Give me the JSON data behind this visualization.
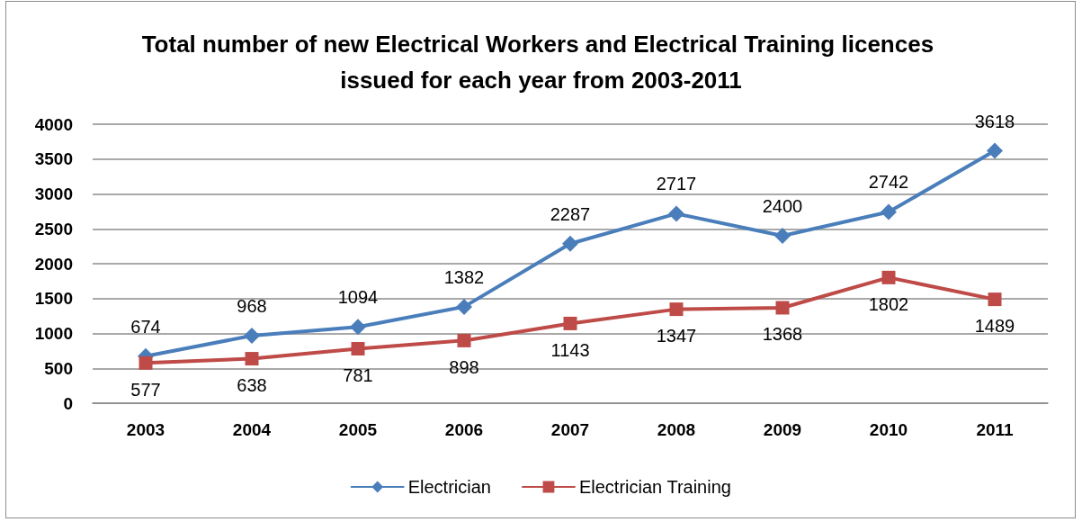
{
  "chart_data": {
    "type": "line",
    "title": "Total number of new Electrical Workers and Electrical Training licences issued for each year from 2003-2011",
    "categories": [
      "2003",
      "2004",
      "2005",
      "2006",
      "2007",
      "2008",
      "2009",
      "2010",
      "2011"
    ],
    "series": [
      {
        "name": "Electrician",
        "color": "#4a7ebb",
        "marker": "diamond",
        "values": [
          674,
          968,
          1094,
          1382,
          2287,
          2717,
          2400,
          2742,
          3618
        ]
      },
      {
        "name": "Electrician Training",
        "color": "#be4b48",
        "marker": "square",
        "values": [
          577,
          638,
          781,
          898,
          1143,
          1347,
          1368,
          1802,
          1489
        ]
      }
    ],
    "ylim": [
      0,
      4000
    ],
    "yticks": [
      0,
      500,
      1000,
      1500,
      2000,
      2500,
      3000,
      3500,
      4000
    ],
    "grid": "y",
    "legend": "bottom",
    "data_labels": true,
    "line_style": "solid"
  }
}
